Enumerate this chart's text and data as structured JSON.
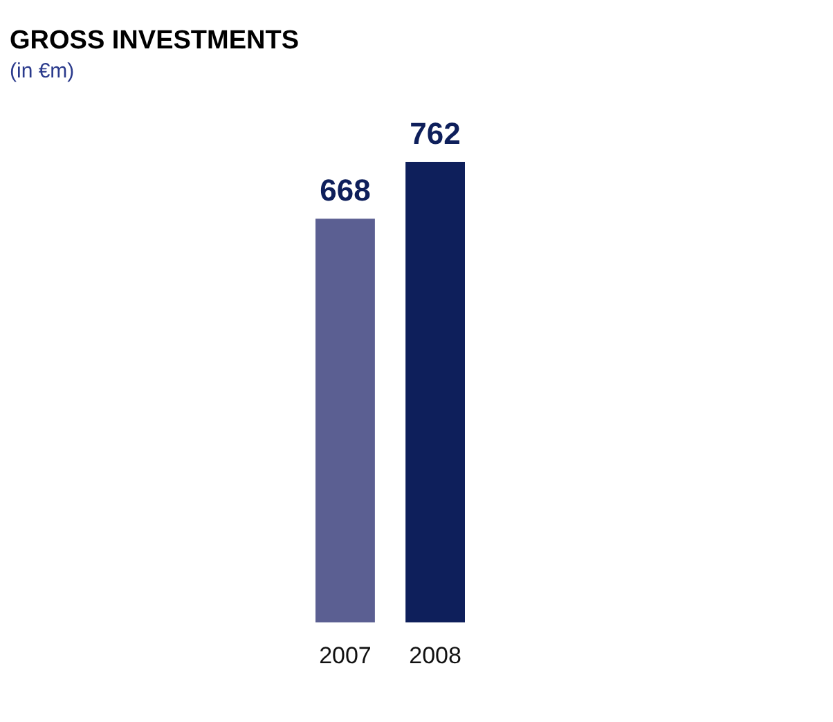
{
  "chart_data": {
    "type": "bar",
    "title": "GROSS INVESTMENTS",
    "subtitle": "(in €m)",
    "categories": [
      "2007",
      "2008"
    ],
    "values": [
      668,
      762
    ],
    "colors": [
      "#5b5f92",
      "#0e1f5b"
    ],
    "data_labels": true,
    "grid": false
  }
}
